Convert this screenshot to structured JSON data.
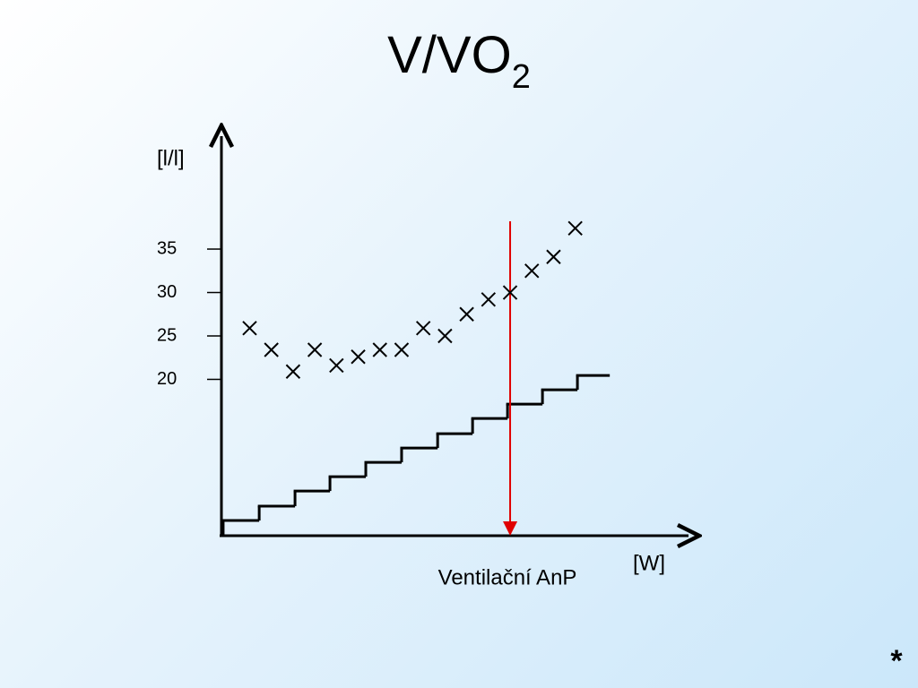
{
  "chart_data": {
    "type": "scatter",
    "title": "V/VO",
    "title_subscript": "2",
    "y_label": "[l/l]",
    "x_label": "[W]",
    "ylim": [
      2,
      48
    ],
    "yticks": [
      20,
      25,
      30,
      35
    ],
    "xlim": [
      -0.3,
      21.3
    ],
    "series": [
      {
        "x": [
          1,
          2,
          3,
          4,
          5,
          6,
          7,
          8,
          9,
          10,
          11,
          12,
          13,
          14,
          15,
          16
        ],
        "values": [
          25.9,
          23.4,
          20.9,
          23.4,
          21.6,
          22.6,
          23.4,
          23.4,
          25.9,
          25,
          27.5,
          29.2,
          30,
          32.5,
          34.1,
          37.4
        ],
        "color": "#000000"
      }
    ],
    "steps": {
      "edges": [
        -0.22,
        1.44,
        3.09,
        4.7,
        6.35,
        8.0,
        9.66,
        11.27,
        12.88,
        14.49,
        16.1,
        17.59
      ],
      "values": [
        3.75,
        5.4,
        7.15,
        8.8,
        10.45,
        12.1,
        13.75,
        15.5,
        17.15,
        18.8,
        20.45
      ],
      "color": "#000000"
    },
    "annotation": {
      "label": "Ventilační AnP",
      "x": 13,
      "y_top": 38.2,
      "color": "#e00000"
    },
    "footnote": "*"
  }
}
